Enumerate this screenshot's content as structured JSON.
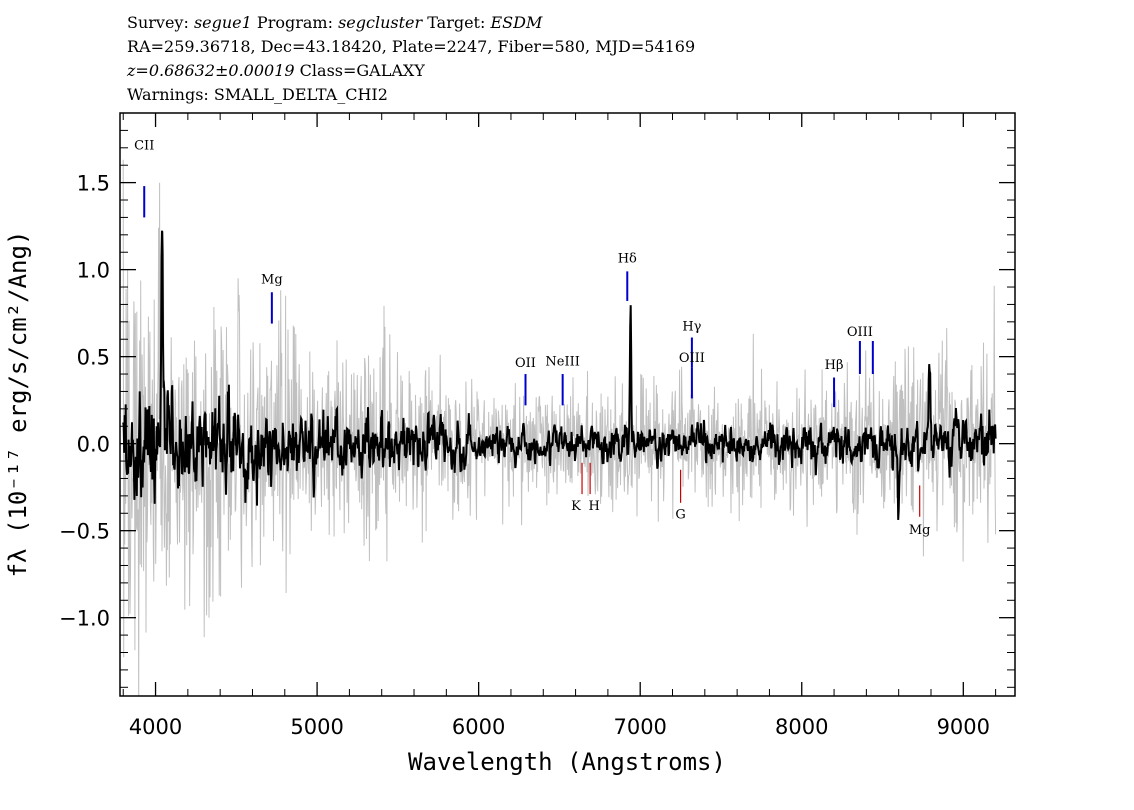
{
  "header": {
    "survey_label": "Survey:",
    "survey": "segue1",
    "program_label": "Program:",
    "program": "segcluster",
    "target_label": "Target:",
    "target": "ESDM",
    "line2": "RA=259.36718, Dec=43.18420, Plate=2247, Fiber=580, MJD=54169",
    "redshift": "z=0.68632±0.00019",
    "class": "Class=GALAXY",
    "warnings": "Warnings: SMALL_DELTA_CHI2"
  },
  "chart_data": {
    "type": "line",
    "xlabel": "Wavelength (Angstroms)",
    "ylabel": "fλ (10⁻¹⁷ erg/s/cm²/Ang)",
    "xlim": [
      3780,
      9320
    ],
    "ylim": [
      -1.45,
      1.9
    ],
    "x_ticks": [
      4000,
      5000,
      6000,
      7000,
      8000,
      9000
    ],
    "x_tick_labels": [
      "4000",
      "5000",
      "6000",
      "7000",
      "8000",
      "9000"
    ],
    "y_ticks": [
      -1.0,
      -0.5,
      0.0,
      0.5,
      1.0,
      1.5
    ],
    "y_tick_labels": [
      "−1.0",
      "−0.5",
      "0.0",
      "0.5",
      "1.0",
      "1.5"
    ],
    "grid": false,
    "series": [
      {
        "color": "#c0c0c0",
        "x_range": [
          3800,
          9200
        ],
        "description_level": "noisy raw flux, large amplitude at blue end"
      },
      {
        "color": "#000000",
        "x_range": [
          3800,
          9200
        ],
        "description_level": "smoothed flux near zero, strong feature near 6940"
      }
    ],
    "features": [
      {
        "x": 6940,
        "y": 0.78
      },
      {
        "x": 4040,
        "y": 1.32
      },
      {
        "x": 8790,
        "y": 0.48
      },
      {
        "x": 8600,
        "y": -0.38
      }
    ],
    "emission_lines": [
      {
        "label": "CII",
        "x": 3930,
        "y_top": 1.48,
        "y_bottom": 1.3,
        "label_y": 1.69,
        "color": "#0000cc"
      },
      {
        "label": "Mg",
        "x": 4720,
        "y_top": 0.87,
        "y_bottom": 0.69,
        "label_y": 0.92,
        "color": "#0000cc"
      },
      {
        "label": "OII",
        "x": 6290,
        "y_top": 0.4,
        "y_bottom": 0.22,
        "label_y": 0.44,
        "color": "#0000cc"
      },
      {
        "label": "NeIII",
        "x": 6520,
        "y_top": 0.4,
        "y_bottom": 0.22,
        "label_y": 0.45,
        "color": "#0000cc"
      },
      {
        "label": "Hδ",
        "x": 6920,
        "y_top": 0.99,
        "y_bottom": 0.82,
        "label_y": 1.04,
        "color": "#0000cc"
      },
      {
        "label": "Hγ",
        "x": 7320,
        "y_top": 0.61,
        "y_bottom": 0.44,
        "label_y": 0.65,
        "color": "#0000cc"
      },
      {
        "label": "OIII",
        "x": 7320,
        "y_top": 0.44,
        "y_bottom": 0.26,
        "label_y": 0.47,
        "color": "#0000cc"
      },
      {
        "label": "Hβ",
        "x": 8200,
        "y_top": 0.38,
        "y_bottom": 0.21,
        "label_y": 0.43,
        "color": "#0000cc"
      },
      {
        "label": "OIII",
        "x": 8360,
        "y_top": 0.59,
        "y_bottom": 0.4,
        "label_y": 0.62,
        "color": "#0000cc"
      },
      {
        "label": "",
        "x": 8440,
        "y_top": 0.59,
        "y_bottom": 0.4,
        "label_y": 0.62,
        "color": "#0000cc"
      }
    ],
    "absorption_lines": [
      {
        "label": "K",
        "x": 6640,
        "y_top": -0.11,
        "y_bottom": -0.29,
        "label_y": -0.38,
        "color": "#cc0000",
        "label_dx": -6
      },
      {
        "label": "H",
        "x": 6690,
        "y_top": -0.11,
        "y_bottom": -0.29,
        "label_y": -0.38,
        "color": "#cc0000",
        "label_dx": 4
      },
      {
        "label": "G",
        "x": 7250,
        "y_top": -0.15,
        "y_bottom": -0.34,
        "label_y": -0.43,
        "color": "#cc0000",
        "label_dx": 0
      },
      {
        "label": "Mg",
        "x": 8730,
        "y_top": -0.24,
        "y_bottom": -0.42,
        "label_y": -0.52,
        "color": "#cc0000",
        "label_dx": 0
      }
    ]
  }
}
